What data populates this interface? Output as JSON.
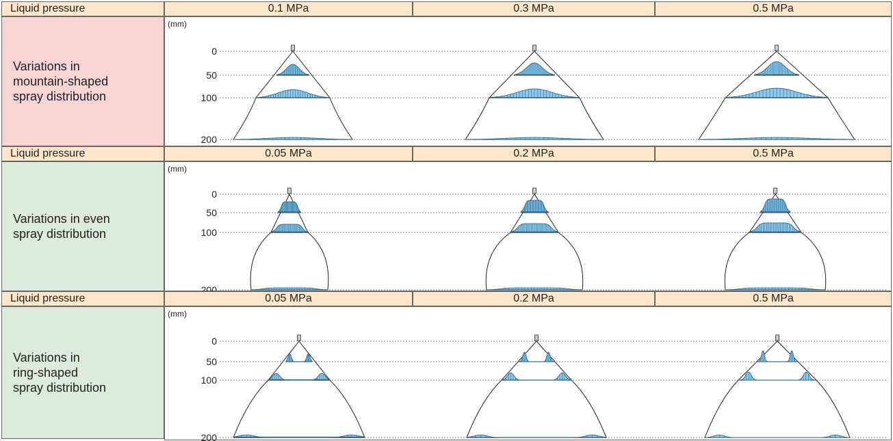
{
  "sections": [
    {
      "header_label": "Liquid pressure",
      "pressures": [
        "0.1 MPa",
        "0.3 MPa",
        "0.5 MPa"
      ],
      "title": "Variations in\nmountain-shaped\nspray distribution",
      "pattern": "mountain",
      "axis_unit": "(mm)",
      "depths": [
        "0",
        "50",
        "100",
        "200"
      ]
    },
    {
      "header_label": "Liquid pressure",
      "pressures": [
        "0.05 MPa",
        "0.2 MPa",
        "0.5 MPa"
      ],
      "title": "Variations in even\nspray distribution",
      "pattern": "even",
      "axis_unit": "(mm)",
      "depths": [
        "0",
        "50",
        "100",
        "200"
      ]
    },
    {
      "header_label": "Liquid pressure",
      "pressures": [
        "0.05 MPa",
        "0.2 MPa",
        "0.5 MPa"
      ],
      "title": "Variations in\nring-shaped\nspray distribution",
      "pattern": "ring",
      "axis_unit": "(mm)",
      "depths": [
        "0",
        "50",
        "100",
        "200"
      ]
    }
  ],
  "colors": {
    "header_bg": "#fde7c8",
    "mountain_bg": "#f8d4d4",
    "even_bg": "#dcebdc",
    "ring_bg": "#dcebdc",
    "profile_fill": "#8ec9ea",
    "profile_stroke": "#1a5f8a"
  }
}
